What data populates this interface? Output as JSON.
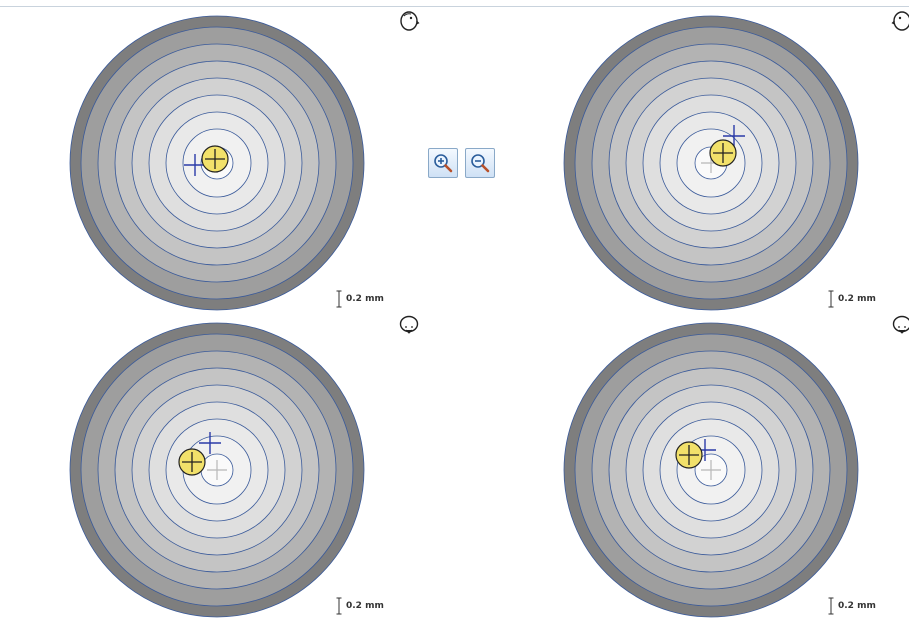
{
  "scale_label": "0.2 mm",
  "colors": {
    "ring_colors": [
      "#7e7e7e",
      "#9e9e9e",
      "#b3b3b3",
      "#c4c4c4",
      "#d2d2d2",
      "#dfdfdf",
      "#e9e9e9",
      "#f1f1f1"
    ],
    "ring_line": "#3a5a9a",
    "blue_cross": "#2a3aa8",
    "gray_cross": "#b8b8b8",
    "marker_fill": "#f2e16a",
    "marker_stroke": "#222222"
  },
  "zoom": {
    "in_icon": "zoom-in-icon",
    "out_icon": "zoom-out-icon"
  },
  "panels": [
    {
      "id": "top-left",
      "face_icon": "face-right-icon",
      "marker": {
        "dx": -2,
        "dy": -4
      },
      "blue_cross": {
        "dx": -22,
        "dy": 2
      }
    },
    {
      "id": "top-right",
      "face_icon": "face-left-icon",
      "marker": {
        "dx": 12,
        "dy": -10
      },
      "blue_cross": {
        "dx": 23,
        "dy": -27
      }
    },
    {
      "id": "bottom-left",
      "face_icon": "face-down-icon",
      "marker": {
        "dx": -25,
        "dy": -8
      },
      "blue_cross": {
        "dx": -7,
        "dy": -27
      }
    },
    {
      "id": "bottom-right",
      "face_icon": "face-down-icon",
      "marker": {
        "dx": -22,
        "dy": -15
      },
      "blue_cross": {
        "dx": -6,
        "dy": -20
      }
    }
  ]
}
